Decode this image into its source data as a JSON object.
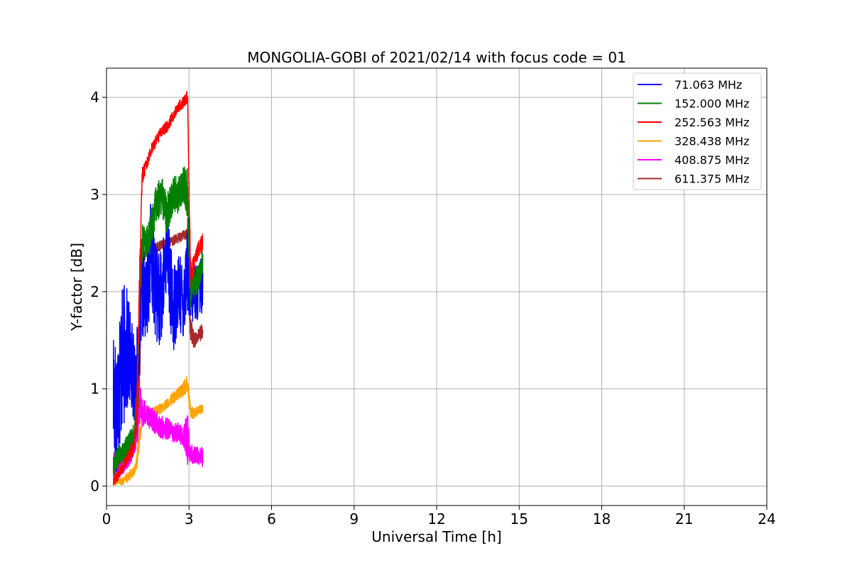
{
  "chart_data": {
    "type": "line",
    "title": "MONGOLIA-GOBI of 2021/02/14 with focus code = 01",
    "xlabel": "Universal Time [h]",
    "ylabel": "Y-factor [dB]",
    "xlim": [
      0,
      24
    ],
    "ylim": [
      -0.2,
      4.3
    ],
    "xticks": [
      0,
      3,
      6,
      9,
      12,
      15,
      18,
      21,
      24
    ],
    "xtick_labels": [
      "0",
      "3",
      "6",
      "9",
      "12",
      "15",
      "18",
      "21",
      "24"
    ],
    "yticks": [
      0,
      1,
      2,
      3,
      4
    ],
    "ytick_labels": [
      "0",
      "1",
      "2",
      "3",
      "4"
    ],
    "grid": true,
    "legend_position": "top-right",
    "series": [
      {
        "name": " 71.063 MHz",
        "color": "#0000ff",
        "x": [
          0.25,
          0.35,
          0.5,
          0.7,
          0.9,
          1.05,
          1.2,
          1.3,
          1.45,
          1.6,
          1.8,
          2.0,
          2.2,
          2.4,
          2.6,
          2.8,
          2.95,
          3.05,
          3.2,
          3.35,
          3.5
        ],
        "y": [
          1.0,
          0.8,
          1.2,
          1.4,
          1.3,
          1.0,
          1.6,
          2.0,
          1.9,
          2.4,
          2.0,
          1.9,
          2.5,
          1.8,
          2.0,
          1.9,
          2.3,
          1.9,
          2.0,
          2.0,
          2.1
        ],
        "amp": [
          0.8,
          0.7,
          0.8,
          0.7,
          0.5,
          0.4,
          0.4,
          0.5,
          0.4,
          0.6,
          0.5,
          0.5,
          0.4,
          0.5,
          0.4,
          0.4,
          0.5,
          0.3,
          0.3,
          0.3,
          0.3
        ]
      },
      {
        "name": "152.000 MHz",
        "color": "#008000",
        "x": [
          0.25,
          0.4,
          0.6,
          0.8,
          1.0,
          1.1,
          1.2,
          1.3,
          1.45,
          1.6,
          1.8,
          2.0,
          2.2,
          2.4,
          2.6,
          2.8,
          2.95,
          3.05,
          3.2,
          3.35,
          3.5
        ],
        "y": [
          0.2,
          0.3,
          0.35,
          0.45,
          0.55,
          0.9,
          2.0,
          2.5,
          2.5,
          2.6,
          2.9,
          3.0,
          2.8,
          3.0,
          3.0,
          3.1,
          3.0,
          2.0,
          2.1,
          2.15,
          2.3
        ],
        "amp": [
          0.1,
          0.1,
          0.1,
          0.1,
          0.1,
          0.2,
          0.3,
          0.2,
          0.15,
          0.2,
          0.2,
          0.2,
          0.2,
          0.2,
          0.2,
          0.2,
          0.3,
          0.2,
          0.15,
          0.15,
          0.15
        ]
      },
      {
        "name": "252.563 MHz",
        "color": "#ff0000",
        "x": [
          0.25,
          0.4,
          0.6,
          0.8,
          1.0,
          1.1,
          1.2,
          1.3,
          1.45,
          1.6,
          1.8,
          2.0,
          2.2,
          2.4,
          2.6,
          2.8,
          2.95,
          3.05,
          3.2,
          3.35,
          3.5
        ],
        "y": [
          0.05,
          0.1,
          0.2,
          0.3,
          0.4,
          0.8,
          2.0,
          3.2,
          3.3,
          3.45,
          3.55,
          3.65,
          3.7,
          3.8,
          3.9,
          3.95,
          4.0,
          2.2,
          2.3,
          2.45,
          2.5
        ],
        "amp": [
          0.05,
          0.05,
          0.05,
          0.05,
          0.08,
          0.15,
          0.3,
          0.1,
          0.06,
          0.06,
          0.06,
          0.06,
          0.06,
          0.06,
          0.06,
          0.06,
          0.08,
          0.2,
          0.08,
          0.08,
          0.1
        ]
      },
      {
        "name": "328.438 MHz",
        "color": "#ffa500",
        "x": [
          0.25,
          0.4,
          0.6,
          0.8,
          1.0,
          1.1,
          1.2,
          1.3,
          1.45,
          1.6,
          1.8,
          2.0,
          2.2,
          2.4,
          2.6,
          2.8,
          2.95,
          3.05,
          3.2,
          3.35,
          3.5
        ],
        "y": [
          0.02,
          0.05,
          0.05,
          0.1,
          0.15,
          0.25,
          0.5,
          0.7,
          0.75,
          0.75,
          0.78,
          0.8,
          0.85,
          0.9,
          0.95,
          1.0,
          1.05,
          0.75,
          0.75,
          0.78,
          0.8
        ],
        "amp": [
          0.03,
          0.03,
          0.04,
          0.05,
          0.05,
          0.08,
          0.1,
          0.06,
          0.05,
          0.05,
          0.05,
          0.05,
          0.05,
          0.06,
          0.06,
          0.08,
          0.1,
          0.08,
          0.05,
          0.05,
          0.05
        ]
      },
      {
        "name": "408.875 MHz",
        "color": "#ff00ff",
        "x": [
          0.25,
          0.4,
          0.6,
          0.8,
          1.0,
          1.1,
          1.2,
          1.3,
          1.45,
          1.6,
          1.8,
          2.0,
          2.2,
          2.4,
          2.6,
          2.8,
          2.95,
          3.05,
          3.2,
          3.35,
          3.5
        ],
        "y": [
          0.2,
          0.25,
          0.2,
          0.3,
          0.4,
          0.55,
          0.85,
          0.75,
          0.75,
          0.7,
          0.65,
          0.6,
          0.6,
          0.55,
          0.55,
          0.5,
          0.5,
          0.35,
          0.3,
          0.3,
          0.3
        ],
        "amp": [
          0.15,
          0.12,
          0.1,
          0.1,
          0.1,
          0.15,
          0.3,
          0.15,
          0.12,
          0.12,
          0.12,
          0.12,
          0.12,
          0.1,
          0.1,
          0.1,
          0.3,
          0.1,
          0.1,
          0.1,
          0.1
        ]
      },
      {
        "name": "611.375 MHz",
        "color": "#a52a2a",
        "x": [
          0.25,
          0.4,
          0.6,
          0.8,
          1.0,
          1.1,
          1.2,
          1.3,
          1.45,
          1.6,
          1.8,
          2.0,
          2.2,
          2.4,
          2.6,
          2.8,
          2.95,
          3.05,
          3.2,
          3.35,
          3.5
        ],
        "y": [
          0.15,
          0.25,
          0.3,
          0.4,
          0.5,
          0.6,
          1.2,
          2.35,
          2.4,
          2.42,
          2.45,
          2.48,
          2.5,
          2.52,
          2.55,
          2.58,
          2.6,
          1.6,
          1.5,
          1.55,
          1.6
        ],
        "amp": [
          0.08,
          0.08,
          0.08,
          0.08,
          0.08,
          0.1,
          0.3,
          0.06,
          0.05,
          0.05,
          0.05,
          0.05,
          0.05,
          0.05,
          0.05,
          0.05,
          0.06,
          0.15,
          0.08,
          0.08,
          0.08
        ]
      }
    ]
  }
}
